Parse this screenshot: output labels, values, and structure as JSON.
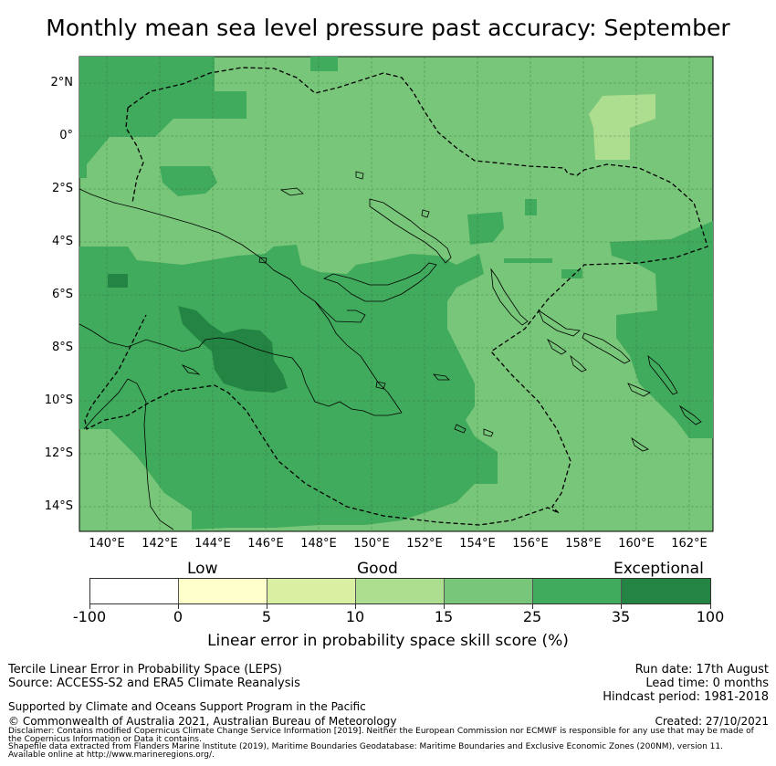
{
  "title": "Monthly mean sea level pressure past accuracy: September",
  "map": {
    "lat_labels": [
      "2°N",
      "0°",
      "2°S",
      "4°S",
      "6°S",
      "8°S",
      "10°S",
      "12°S",
      "14°S"
    ],
    "lon_labels": [
      "140°E",
      "142°E",
      "144°E",
      "146°E",
      "148°E",
      "150°E",
      "152°E",
      "154°E",
      "156°E",
      "158°E",
      "160°E",
      "162°E"
    ],
    "colors": {
      "low_band": "#d9f0a3",
      "mid_band": "#addd8e",
      "good": "#78c679",
      "very_good": "#41ab5d",
      "exceptional": "#238443"
    }
  },
  "legend": {
    "categories": [
      "Low",
      "Good",
      "Exceptional"
    ],
    "ticks": [
      "-100",
      "0",
      "5",
      "10",
      "15",
      "25",
      "35",
      "100"
    ],
    "segment_colors": [
      "#ffffff",
      "#ffffcc",
      "#d9f0a3",
      "#addd8e",
      "#78c679",
      "#41ab5d",
      "#238443"
    ],
    "label": "Linear error in probability space skill score (%)"
  },
  "info": {
    "left1": "Tercile Linear Error in Probability Space (LEPS)",
    "left2": "Source: ACCESS-S2 and ERA5 Climate Reanalysis",
    "right1": "Run date: 17th August",
    "right2": "Lead time: 0 months",
    "right3": "Hindcast period: 1981-2018",
    "support": "Supported by Climate and Oceans Support Program in the Pacific",
    "copyright": "© Commonwealth of Australia 2021, Australian Bureau of Meteorology",
    "created": "Created: 27/10/2021",
    "disclaimer1": "Disclaimer: Contains modified Copernicus Climate Change Service Information [2019]. Neither the European Commission nor ECMWF is responsible for any use that may be made of",
    "disclaimer2": "the Copernicus Information or Data it contains.",
    "shapefile1": "Shapefile data extracted from Flanders Marine Institute (2019), Maritime Boundaries Geodatabase: Maritime Boundaries and Exclusive Economic Zones (200NM), version 11.",
    "shapefile2": "Available online at http://www.marineregions.org/."
  }
}
